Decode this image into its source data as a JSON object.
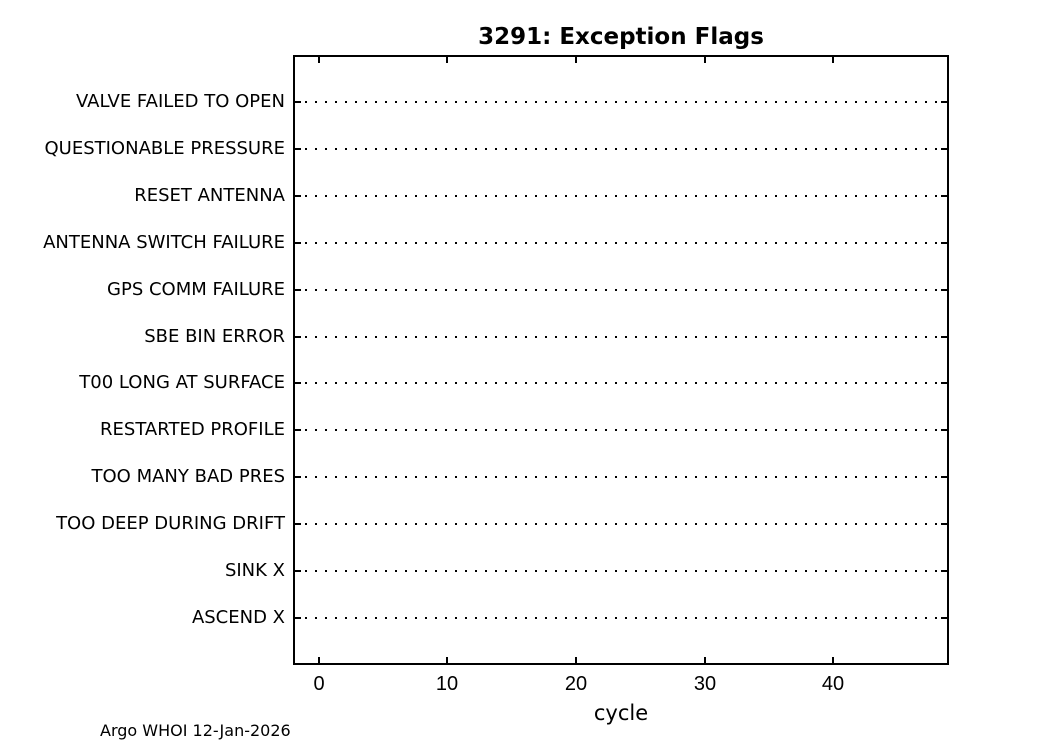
{
  "chart_data": {
    "type": "scatter",
    "title": "3291: Exception Flags",
    "xlabel": "cycle",
    "ylabel": "",
    "categories": [
      "VALVE FAILED TO OPEN",
      "QUESTIONABLE PRESSURE",
      "RESET ANTENNA",
      "ANTENNA SWITCH FAILURE",
      "GPS COMM FAILURE",
      "SBE BIN ERROR",
      "T00 LONG AT SURFACE",
      "RESTARTED PROFILE",
      "TOO MANY BAD PRES",
      "TOO DEEP DURING DRIFT",
      "SINK X",
      "ASCEND X"
    ],
    "x_ticks": [
      0,
      10,
      20,
      30,
      40
    ],
    "xlim": [
      -2,
      49
    ],
    "series": [],
    "grid": "dotted horizontal line per category",
    "legend": "none",
    "box": "on"
  },
  "footer": {
    "credit": "Argo WHOI 12-Jan-2026"
  },
  "colors": {
    "background": "#ffffff",
    "axis": "#000000",
    "text": "#000000",
    "gridline": "#000000"
  }
}
